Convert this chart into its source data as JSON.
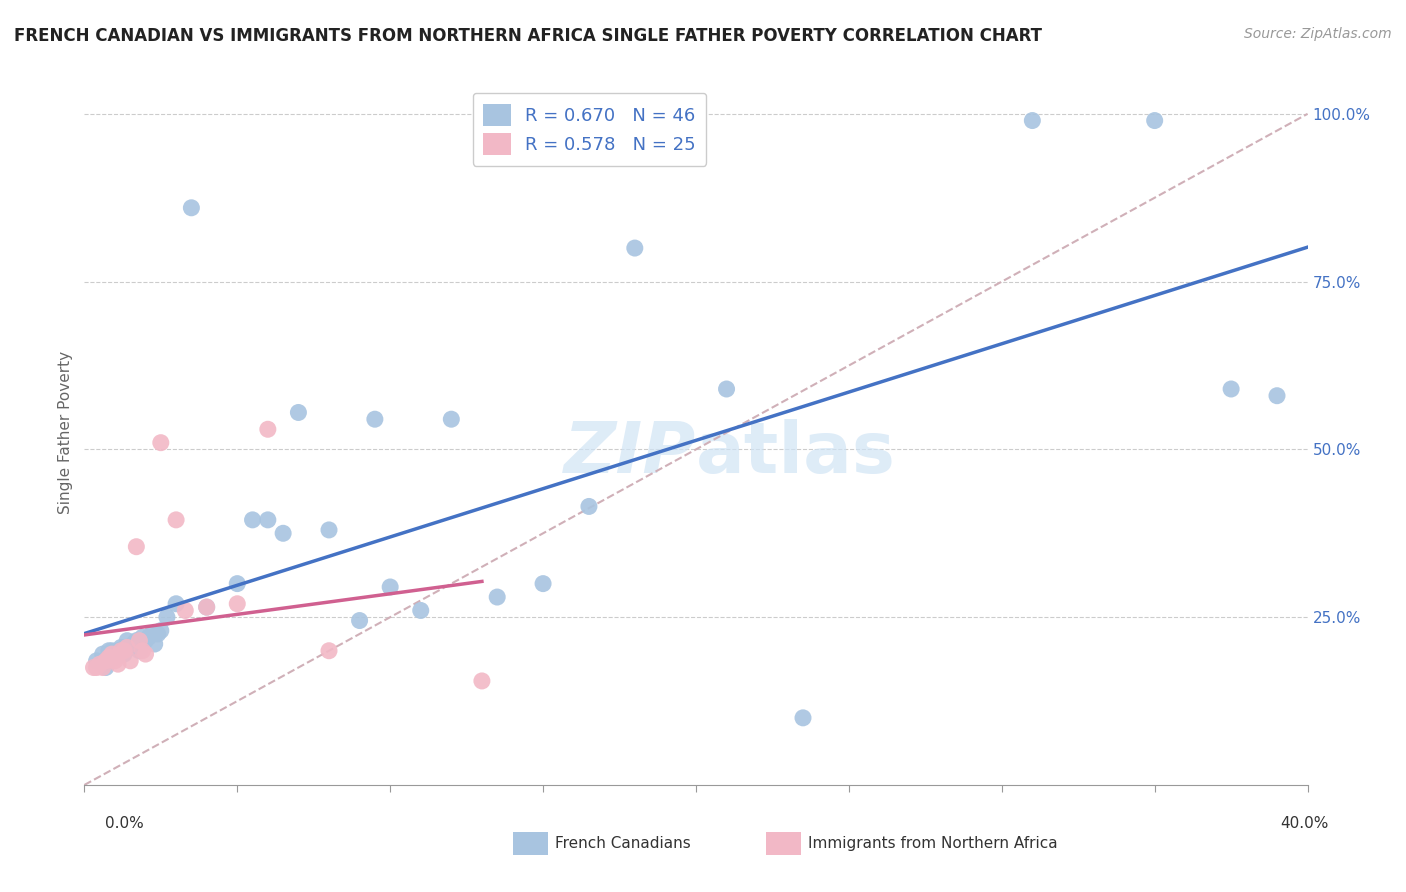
{
  "title": "FRENCH CANADIAN VS IMMIGRANTS FROM NORTHERN AFRICA SINGLE FATHER POVERTY CORRELATION CHART",
  "source": "Source: ZipAtlas.com",
  "ylabel": "Single Father Poverty",
  "xlim": [
    0.0,
    0.4
  ],
  "ylim": [
    0.0,
    1.05
  ],
  "legend1_R": "0.670",
  "legend1_N": "46",
  "legend2_R": "0.578",
  "legend2_N": "25",
  "blue_color": "#a8c4e0",
  "pink_color": "#f2b8c6",
  "blue_line_color": "#4472c4",
  "pink_line_color": "#d06090",
  "diag_color": "#d0b0b8",
  "watermark_color": "#d0e4f5",
  "french_canadian_x": [
    0.004,
    0.006,
    0.007,
    0.008,
    0.009,
    0.01,
    0.011,
    0.012,
    0.013,
    0.014,
    0.015,
    0.016,
    0.017,
    0.018,
    0.019,
    0.02,
    0.021,
    0.022,
    0.023,
    0.024,
    0.025,
    0.027,
    0.03,
    0.035,
    0.04,
    0.05,
    0.055,
    0.06,
    0.065,
    0.07,
    0.08,
    0.09,
    0.095,
    0.1,
    0.11,
    0.12,
    0.135,
    0.15,
    0.165,
    0.18,
    0.21,
    0.235,
    0.31,
    0.35,
    0.375,
    0.39
  ],
  "french_canadian_y": [
    0.185,
    0.195,
    0.175,
    0.2,
    0.2,
    0.19,
    0.2,
    0.205,
    0.195,
    0.215,
    0.205,
    0.21,
    0.215,
    0.2,
    0.22,
    0.215,
    0.22,
    0.225,
    0.21,
    0.225,
    0.23,
    0.25,
    0.27,
    0.86,
    0.265,
    0.3,
    0.395,
    0.395,
    0.375,
    0.555,
    0.38,
    0.245,
    0.545,
    0.295,
    0.26,
    0.545,
    0.28,
    0.3,
    0.415,
    0.8,
    0.59,
    0.1,
    0.99,
    0.99,
    0.59,
    0.58
  ],
  "northern_africa_x": [
    0.003,
    0.004,
    0.005,
    0.006,
    0.007,
    0.008,
    0.009,
    0.01,
    0.011,
    0.012,
    0.013,
    0.014,
    0.015,
    0.017,
    0.018,
    0.019,
    0.02,
    0.025,
    0.03,
    0.033,
    0.04,
    0.05,
    0.06,
    0.08,
    0.13
  ],
  "northern_africa_y": [
    0.175,
    0.175,
    0.18,
    0.175,
    0.185,
    0.19,
    0.195,
    0.185,
    0.18,
    0.2,
    0.2,
    0.205,
    0.185,
    0.355,
    0.215,
    0.2,
    0.195,
    0.51,
    0.395,
    0.26,
    0.265,
    0.27,
    0.53,
    0.2,
    0.155
  ]
}
